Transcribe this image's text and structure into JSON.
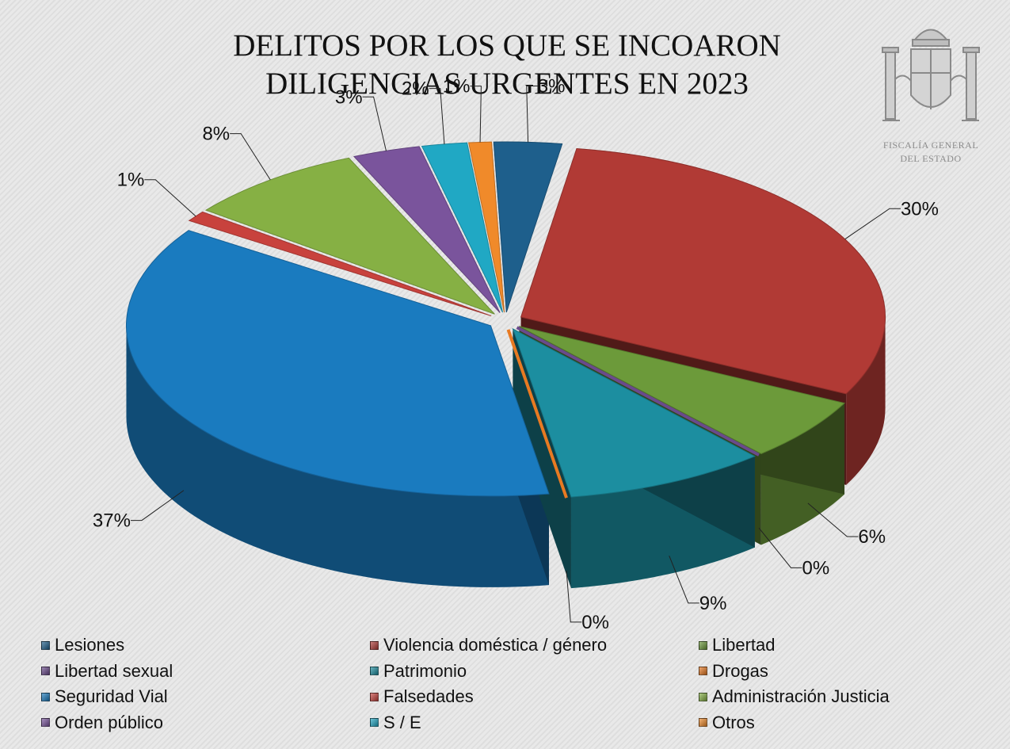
{
  "title_line1": "DELITOS POR LOS QUE SE INCOARON",
  "title_line2": "DILIGENCIAS URGENTES EN 2023",
  "org_line1": "FISCALÍA GENERAL",
  "org_line2": "DEL ESTADO",
  "chart_data": {
    "type": "pie",
    "title": "DELITOS POR LOS QUE SE INCOARON DILIGENCIAS URGENTES EN 2023",
    "legend_position": "bottom",
    "categories": [
      "Lesiones",
      "Violencia doméstica / género",
      "Libertad",
      "Libertad sexual",
      "Patrimonio",
      "Drogas",
      "Seguridad Vial",
      "Falsedades",
      "Administración Justicia",
      "Orden público",
      "S / E",
      "Otros"
    ],
    "values": [
      3,
      30,
      6,
      0,
      9,
      0,
      37,
      1,
      8,
      3,
      2,
      1
    ],
    "labels": [
      "3%",
      "30%",
      "6%",
      "0%",
      "9%",
      "0%",
      "37%",
      "1%",
      "8%",
      "3%",
      "2%",
      "1%"
    ],
    "colors": [
      "#1e5f8c",
      "#b13a35",
      "#6c9a3a",
      "#6a4a8c",
      "#1c8ea0",
      "#e87a22",
      "#1a7bbf",
      "#c8423d",
      "#86b044",
      "#7a549c",
      "#20a8c4",
      "#f08a2a"
    ]
  }
}
